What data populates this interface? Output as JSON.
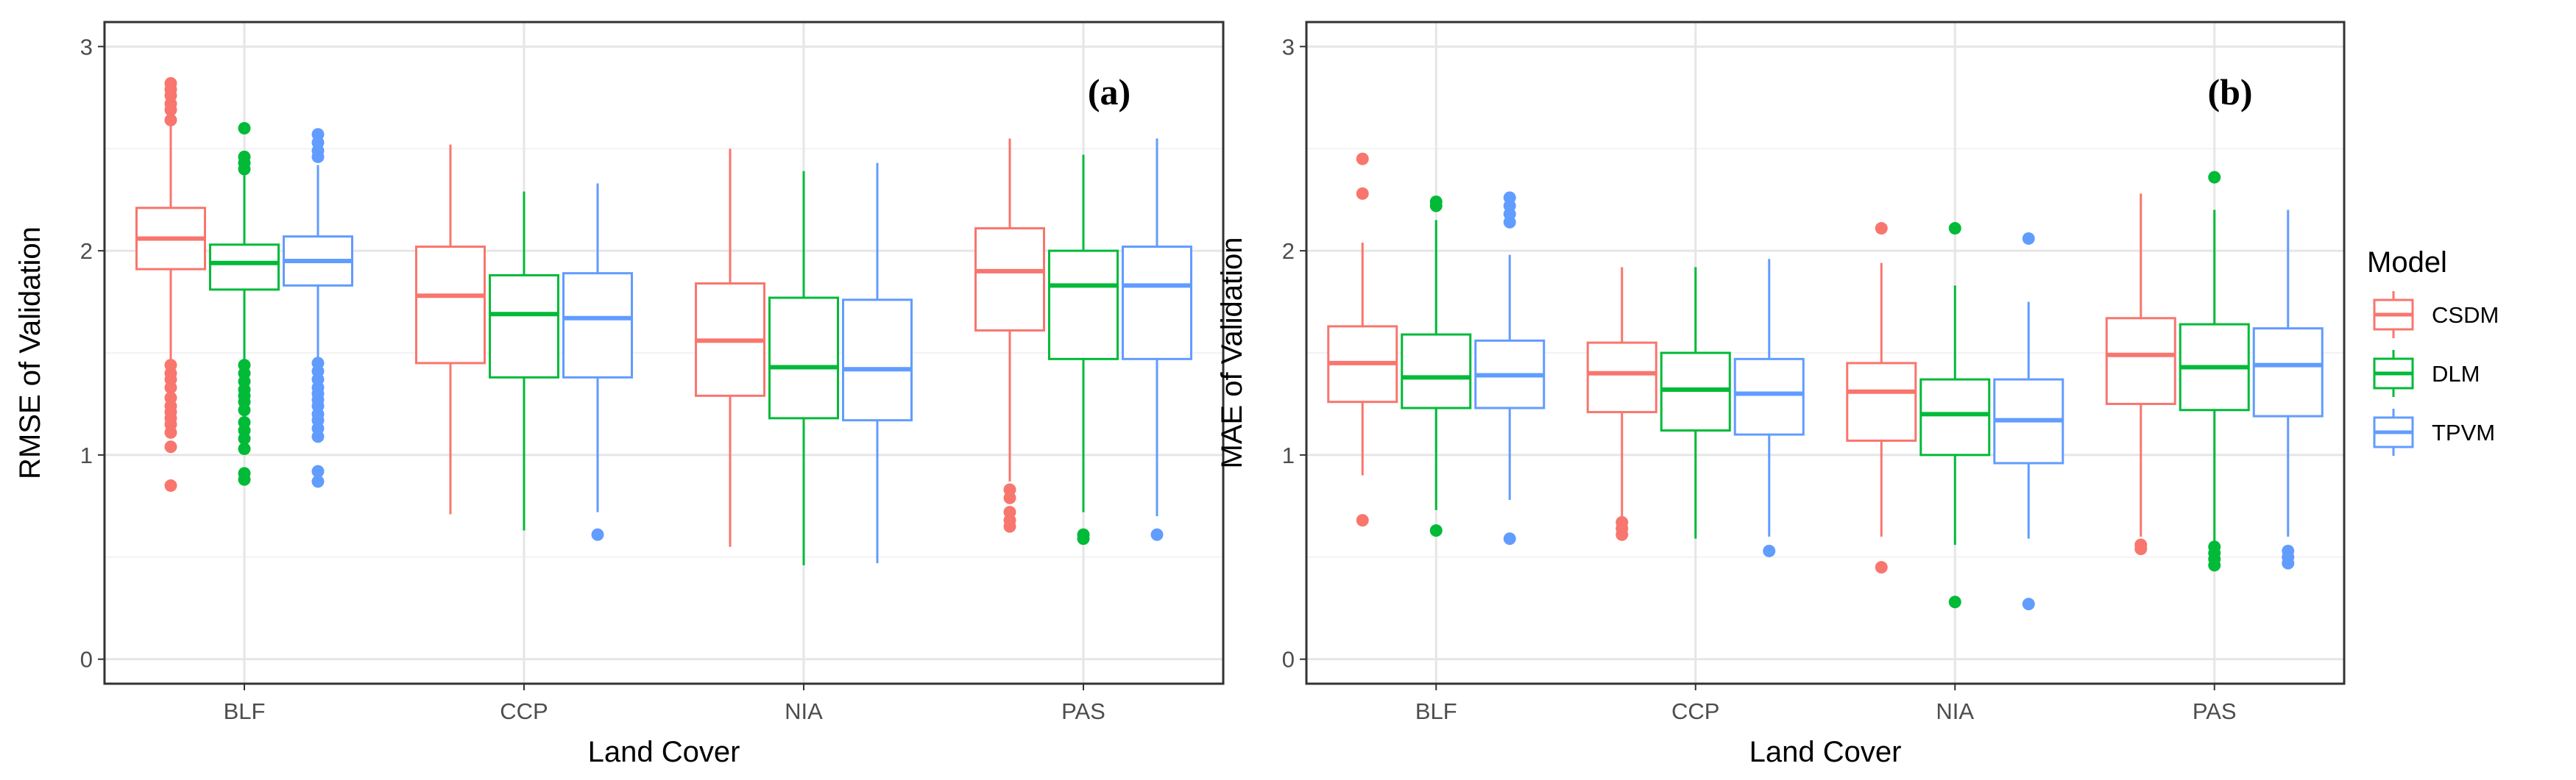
{
  "colors": {
    "CSDM": "#F8766D",
    "DLM": "#00BA38",
    "TPVM": "#619CFF",
    "panel_border": "#333333",
    "grid_major": "#e6e6e6",
    "grid_minor": "#f3f3f3"
  },
  "legend": {
    "title": "Model",
    "items": [
      "CSDM",
      "DLM",
      "TPVM"
    ]
  },
  "chart_data": [
    {
      "type": "boxplot",
      "panel_label": "(a)",
      "xlabel": "Land Cover",
      "ylabel": "RMSE of Validation",
      "ylim": [
        -0.12,
        3.12
      ],
      "yticks": [
        0,
        1,
        2,
        3
      ],
      "categories": [
        "BLF",
        "CCP",
        "NIA",
        "PAS"
      ],
      "series": [
        {
          "name": "CSDM",
          "boxes": [
            {
              "q1": 1.91,
              "median": 2.06,
              "q3": 2.21,
              "whisker_low": 1.47,
              "whisker_high": 2.62,
              "outliers": [
                0.85,
                1.04,
                1.11,
                1.15,
                1.18,
                1.21,
                1.24,
                1.28,
                1.33,
                1.37,
                1.4,
                1.44,
                2.64,
                2.69,
                2.72,
                2.76,
                2.79,
                2.82
              ]
            },
            {
              "q1": 1.45,
              "median": 1.78,
              "q3": 2.02,
              "whisker_low": 0.71,
              "whisker_high": 2.52,
              "outliers": []
            },
            {
              "q1": 1.29,
              "median": 1.56,
              "q3": 1.84,
              "whisker_low": 0.55,
              "whisker_high": 2.5,
              "outliers": []
            },
            {
              "q1": 1.61,
              "median": 1.9,
              "q3": 2.11,
              "whisker_low": 0.87,
              "whisker_high": 2.55,
              "outliers": [
                0.65,
                0.68,
                0.72,
                0.79,
                0.83
              ]
            }
          ]
        },
        {
          "name": "DLM",
          "boxes": [
            {
              "q1": 1.81,
              "median": 1.94,
              "q3": 2.03,
              "whisker_low": 1.47,
              "whisker_high": 2.37,
              "outliers": [
                0.88,
                0.91,
                1.03,
                1.08,
                1.12,
                1.16,
                1.22,
                1.26,
                1.29,
                1.32,
                1.36,
                1.4,
                1.44,
                2.4,
                2.43,
                2.46,
                2.6
              ]
            },
            {
              "q1": 1.38,
              "median": 1.69,
              "q3": 1.88,
              "whisker_low": 0.63,
              "whisker_high": 2.29,
              "outliers": []
            },
            {
              "q1": 1.18,
              "median": 1.43,
              "q3": 1.77,
              "whisker_low": 0.46,
              "whisker_high": 2.39,
              "outliers": []
            },
            {
              "q1": 1.47,
              "median": 1.83,
              "q3": 2.0,
              "whisker_low": 0.72,
              "whisker_high": 2.47,
              "outliers": [
                0.59,
                0.61
              ]
            }
          ]
        },
        {
          "name": "TPVM",
          "boxes": [
            {
              "q1": 1.83,
              "median": 1.95,
              "q3": 2.07,
              "whisker_low": 1.48,
              "whisker_high": 2.42,
              "outliers": [
                0.87,
                0.92,
                1.09,
                1.13,
                1.17,
                1.2,
                1.24,
                1.27,
                1.3,
                1.33,
                1.37,
                1.41,
                1.45,
                2.46,
                2.49,
                2.53,
                2.57
              ]
            },
            {
              "q1": 1.38,
              "median": 1.67,
              "q3": 1.89,
              "whisker_low": 0.72,
              "whisker_high": 2.33,
              "outliers": [
                0.61
              ]
            },
            {
              "q1": 1.17,
              "median": 1.42,
              "q3": 1.76,
              "whisker_low": 0.47,
              "whisker_high": 2.43,
              "outliers": []
            },
            {
              "q1": 1.47,
              "median": 1.83,
              "q3": 2.02,
              "whisker_low": 0.7,
              "whisker_high": 2.55,
              "outliers": [
                0.61
              ]
            }
          ]
        }
      ]
    },
    {
      "type": "boxplot",
      "panel_label": "(b)",
      "xlabel": "Land Cover",
      "ylabel": "MAE of Validation",
      "ylim": [
        -0.12,
        3.12
      ],
      "yticks": [
        0,
        1,
        2,
        3
      ],
      "categories": [
        "BLF",
        "CCP",
        "NIA",
        "PAS"
      ],
      "series": [
        {
          "name": "CSDM",
          "boxes": [
            {
              "q1": 1.26,
              "median": 1.45,
              "q3": 1.63,
              "whisker_low": 0.9,
              "whisker_high": 2.04,
              "outliers": [
                0.68,
                2.28,
                2.45
              ]
            },
            {
              "q1": 1.21,
              "median": 1.4,
              "q3": 1.55,
              "whisker_low": 0.7,
              "whisker_high": 1.92,
              "outliers": [
                0.61,
                0.64,
                0.67
              ]
            },
            {
              "q1": 1.07,
              "median": 1.31,
              "q3": 1.45,
              "whisker_low": 0.6,
              "whisker_high": 1.94,
              "outliers": [
                0.45,
                2.11
              ]
            },
            {
              "q1": 1.25,
              "median": 1.49,
              "q3": 1.67,
              "whisker_low": 0.6,
              "whisker_high": 2.28,
              "outliers": [
                0.54,
                0.56
              ]
            }
          ]
        },
        {
          "name": "DLM",
          "boxes": [
            {
              "q1": 1.23,
              "median": 1.38,
              "q3": 1.59,
              "whisker_low": 0.73,
              "whisker_high": 2.15,
              "outliers": [
                0.63,
                2.22,
                2.24
              ]
            },
            {
              "q1": 1.12,
              "median": 1.32,
              "q3": 1.5,
              "whisker_low": 0.59,
              "whisker_high": 1.92,
              "outliers": []
            },
            {
              "q1": 1.0,
              "median": 1.2,
              "q3": 1.37,
              "whisker_low": 0.56,
              "whisker_high": 1.83,
              "outliers": [
                0.28,
                2.11
              ]
            },
            {
              "q1": 1.22,
              "median": 1.43,
              "q3": 1.64,
              "whisker_low": 0.58,
              "whisker_high": 2.2,
              "outliers": [
                0.46,
                0.49,
                0.52,
                0.55,
                2.36
              ]
            }
          ]
        },
        {
          "name": "TPVM",
          "boxes": [
            {
              "q1": 1.23,
              "median": 1.39,
              "q3": 1.56,
              "whisker_low": 0.78,
              "whisker_high": 1.98,
              "outliers": [
                0.59,
                2.14,
                2.18,
                2.22,
                2.26
              ]
            },
            {
              "q1": 1.1,
              "median": 1.3,
              "q3": 1.47,
              "whisker_low": 0.6,
              "whisker_high": 1.96,
              "outliers": [
                0.53
              ]
            },
            {
              "q1": 0.96,
              "median": 1.17,
              "q3": 1.37,
              "whisker_low": 0.59,
              "whisker_high": 1.75,
              "outliers": [
                0.27,
                2.06
              ]
            },
            {
              "q1": 1.19,
              "median": 1.44,
              "q3": 1.62,
              "whisker_low": 0.6,
              "whisker_high": 2.2,
              "outliers": [
                0.47,
                0.5,
                0.53
              ]
            }
          ]
        }
      ]
    }
  ]
}
